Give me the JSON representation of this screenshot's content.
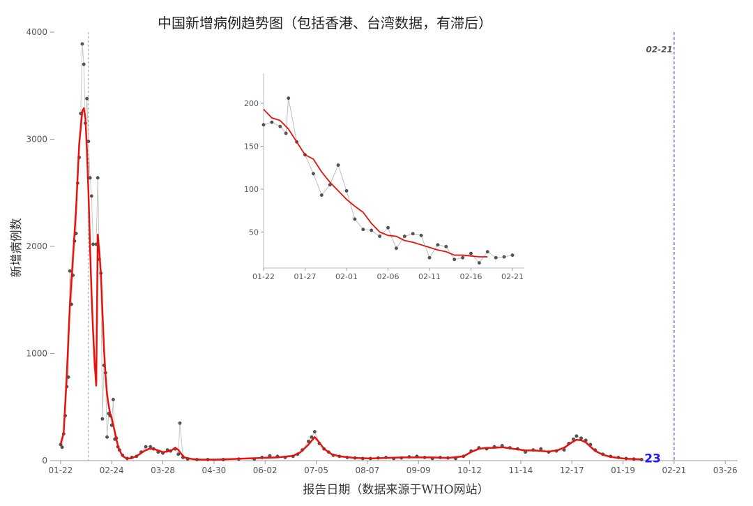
{
  "chart_data": [
    {
      "type": "scatter",
      "title": "中国新增病例趋势图（包括香港、台湾数据，有滞后）",
      "xlabel": "报告日期（数据来源于WHO网站）",
      "ylabel": "新增病例数",
      "x_ticks": [
        "01-22",
        "02-24",
        "03-28",
        "04-30",
        "06-02",
        "07-05",
        "08-07",
        "09-09",
        "10-12",
        "11-14",
        "12-17",
        "01-19",
        "02-21",
        "03-26"
      ],
      "y_ticks": [
        0,
        1000,
        2000,
        3000,
        4000
      ],
      "ylim": [
        0,
        4000
      ],
      "xlim_days": [
        -4,
        437
      ],
      "grid": false,
      "vline_label": "02-21",
      "vline_day": 396,
      "dotted_vline_day": 18,
      "end_label": "23",
      "smooth_color": "#e8120c",
      "raw_color": "#c8c8c8",
      "vline_color": "#3333cc",
      "end_label_color": "#1a1aff",
      "series": [
        {
          "values": [
            [
              0,
              150
            ],
            [
              1,
              125
            ],
            [
              2,
              250
            ],
            [
              3,
              420
            ],
            [
              4,
              690
            ],
            [
              5,
              780
            ],
            [
              6,
              1770
            ],
            [
              7,
              1460
            ],
            [
              8,
              1730
            ],
            [
              9,
              2050
            ],
            [
              10,
              2120
            ],
            [
              11,
              2590
            ],
            [
              12,
              2830
            ],
            [
              13,
              3240
            ],
            [
              14,
              3890
            ],
            [
              15,
              3700
            ],
            [
              16,
              3150
            ],
            [
              17,
              3380
            ],
            [
              18,
              2980
            ],
            [
              19,
              2640
            ],
            [
              20,
              2470
            ],
            [
              21,
              2020
            ],
            [
              23,
              2020
            ],
            [
              24,
              2640
            ],
            [
              25,
              1880
            ],
            [
              26,
              1750
            ],
            [
              27,
              390
            ],
            [
              28,
              890
            ],
            [
              29,
              820
            ],
            [
              30,
              220
            ],
            [
              31,
              440
            ],
            [
              32,
              420
            ],
            [
              33,
              330
            ],
            [
              34,
              570
            ],
            [
              35,
              200
            ],
            [
              36,
              210
            ],
            [
              37,
              130
            ],
            [
              38,
              100
            ],
            [
              40,
              50
            ],
            [
              43,
              20
            ],
            [
              46,
              30
            ],
            [
              49,
              40
            ],
            [
              52,
              80
            ],
            [
              55,
              130
            ],
            [
              58,
              130
            ],
            [
              60,
              110
            ],
            [
              63,
              80
            ],
            [
              66,
              70
            ],
            [
              69,
              100
            ],
            [
              71,
              90
            ],
            [
              74,
              110
            ],
            [
              76,
              60
            ],
            [
              77,
              350
            ],
            [
              79,
              30
            ],
            [
              82,
              15
            ],
            [
              88,
              10
            ],
            [
              95,
              10
            ],
            [
              105,
              10
            ],
            [
              115,
              15
            ],
            [
              125,
              15
            ],
            [
              130,
              30
            ],
            [
              135,
              45
            ],
            [
              140,
              40
            ],
            [
              145,
              30
            ],
            [
              150,
              40
            ],
            [
              153,
              60
            ],
            [
              156,
              100
            ],
            [
              160,
              180
            ],
            [
              162,
              220
            ],
            [
              164,
              270
            ],
            [
              167,
              160
            ],
            [
              170,
              110
            ],
            [
              173,
              80
            ],
            [
              176,
              50
            ],
            [
              180,
              40
            ],
            [
              185,
              30
            ],
            [
              190,
              25
            ],
            [
              195,
              20
            ],
            [
              200,
              20
            ],
            [
              205,
              25
            ],
            [
              210,
              30
            ],
            [
              215,
              20
            ],
            [
              220,
              25
            ],
            [
              225,
              35
            ],
            [
              230,
              40
            ],
            [
              235,
              30
            ],
            [
              240,
              20
            ],
            [
              245,
              30
            ],
            [
              250,
              25
            ],
            [
              255,
              20
            ],
            [
              260,
              40
            ],
            [
              265,
              90
            ],
            [
              270,
              120
            ],
            [
              275,
              110
            ],
            [
              280,
              130
            ],
            [
              285,
              140
            ],
            [
              290,
              120
            ],
            [
              295,
              110
            ],
            [
              300,
              80
            ],
            [
              305,
              100
            ],
            [
              310,
              110
            ],
            [
              315,
              80
            ],
            [
              320,
              90
            ],
            [
              325,
              100
            ],
            [
              328,
              160
            ],
            [
              331,
              200
            ],
            [
              333,
              230
            ],
            [
              336,
              210
            ],
            [
              339,
              190
            ],
            [
              342,
              150
            ],
            [
              345,
              100
            ],
            [
              350,
              60
            ],
            [
              355,
              40
            ],
            [
              360,
              30
            ],
            [
              365,
              20
            ],
            [
              370,
              15
            ],
            [
              375,
              10
            ]
          ]
        },
        {
          "values": [
            [
              0,
              150
            ],
            [
              2,
              260
            ],
            [
              4,
              800
            ],
            [
              6,
              1450
            ],
            [
              8,
              1900
            ],
            [
              10,
              2350
            ],
            [
              12,
              2950
            ],
            [
              14,
              3260
            ],
            [
              15,
              3290
            ],
            [
              16,
              3200
            ],
            [
              17,
              2900
            ],
            [
              18,
              2500
            ],
            [
              19,
              2000
            ],
            [
              20,
              1550
            ],
            [
              21,
              1200
            ],
            [
              22,
              900
            ],
            [
              23,
              700
            ],
            [
              24,
              2110
            ],
            [
              25,
              1950
            ],
            [
              26,
              1750
            ],
            [
              27,
              1400
            ],
            [
              28,
              1050
            ],
            [
              29,
              800
            ],
            [
              30,
              620
            ],
            [
              31,
              520
            ],
            [
              32,
              440
            ],
            [
              33,
              400
            ],
            [
              34,
              330
            ],
            [
              35,
              270
            ],
            [
              36,
              200
            ],
            [
              37,
              140
            ],
            [
              38,
              100
            ],
            [
              39,
              70
            ],
            [
              40,
              45
            ],
            [
              42,
              25
            ],
            [
              45,
              20
            ],
            [
              48,
              35
            ],
            [
              51,
              60
            ],
            [
              54,
              90
            ],
            [
              57,
              110
            ],
            [
              60,
              110
            ],
            [
              63,
              95
            ],
            [
              66,
              80
            ],
            [
              69,
              85
            ],
            [
              72,
              100
            ],
            [
              74,
              120
            ],
            [
              76,
              100
            ],
            [
              78,
              60
            ],
            [
              80,
              30
            ],
            [
              85,
              15
            ],
            [
              90,
              10
            ],
            [
              100,
              10
            ],
            [
              110,
              15
            ],
            [
              120,
              20
            ],
            [
              130,
              25
            ],
            [
              140,
              30
            ],
            [
              150,
              45
            ],
            [
              155,
              80
            ],
            [
              160,
              150
            ],
            [
              164,
              220
            ],
            [
              167,
              170
            ],
            [
              170,
              110
            ],
            [
              175,
              60
            ],
            [
              180,
              40
            ],
            [
              190,
              25
            ],
            [
              200,
              20
            ],
            [
              210,
              25
            ],
            [
              220,
              30
            ],
            [
              230,
              30
            ],
            [
              240,
              30
            ],
            [
              250,
              25
            ],
            [
              260,
              40
            ],
            [
              265,
              80
            ],
            [
              270,
              110
            ],
            [
              275,
              120
            ],
            [
              280,
              120
            ],
            [
              285,
              125
            ],
            [
              290,
              115
            ],
            [
              295,
              105
            ],
            [
              300,
              95
            ],
            [
              305,
              95
            ],
            [
              310,
              90
            ],
            [
              315,
              85
            ],
            [
              320,
              95
            ],
            [
              325,
              120
            ],
            [
              330,
              170
            ],
            [
              333,
              195
            ],
            [
              336,
              190
            ],
            [
              339,
              170
            ],
            [
              342,
              130
            ],
            [
              345,
              90
            ],
            [
              350,
              55
            ],
            [
              355,
              35
            ],
            [
              360,
              25
            ],
            [
              365,
              18
            ],
            [
              370,
              15
            ],
            [
              375,
              12
            ]
          ]
        }
      ]
    },
    {
      "type": "scatter",
      "title": "",
      "x_ticks": [
        "01-22",
        "01-27",
        "02-01",
        "02-06",
        "02-11",
        "02-16",
        "02-21"
      ],
      "y_ticks": [
        50,
        100,
        150,
        200
      ],
      "ylim": [
        8,
        235
      ],
      "xlim": [
        0,
        30
      ],
      "series": [
        {
          "values": [
            [
              0,
              175
            ],
            [
              1,
              178
            ],
            [
              2,
              173
            ],
            [
              2.7,
              165
            ],
            [
              3,
              206
            ],
            [
              4,
              155
            ],
            [
              5,
              140
            ],
            [
              6,
              118
            ],
            [
              7,
              93
            ],
            [
              8,
              105
            ],
            [
              9,
              128
            ],
            [
              10,
              98
            ],
            [
              11,
              65
            ],
            [
              12,
              53
            ],
            [
              13,
              52
            ],
            [
              14,
              45
            ],
            [
              15,
              55
            ],
            [
              16,
              31
            ],
            [
              17,
              45
            ],
            [
              18,
              48
            ],
            [
              19,
              46
            ],
            [
              20,
              20
            ],
            [
              21,
              35
            ],
            [
              22,
              33
            ],
            [
              23,
              18
            ],
            [
              24,
              20
            ],
            [
              25,
              25
            ],
            [
              26,
              14
            ],
            [
              27,
              27
            ],
            [
              28,
              20
            ],
            [
              29,
              21
            ],
            [
              30,
              23
            ]
          ]
        },
        {
          "values": [
            [
              0,
              193
            ],
            [
              1,
              183
            ],
            [
              2,
              180
            ],
            [
              3,
              170
            ],
            [
              4,
              155
            ],
            [
              5,
              140
            ],
            [
              6,
              135
            ],
            [
              7,
              120
            ],
            [
              8,
              108
            ],
            [
              9,
              98
            ],
            [
              10,
              88
            ],
            [
              11,
              80
            ],
            [
              12,
              73
            ],
            [
              13,
              60
            ],
            [
              14,
              50
            ],
            [
              15,
              46
            ],
            [
              16,
              45
            ],
            [
              17,
              40
            ],
            [
              18,
              38
            ],
            [
              19,
              35
            ],
            [
              20,
              32
            ],
            [
              21,
              29
            ],
            [
              22,
              27
            ],
            [
              23,
              23
            ],
            [
              24,
              23
            ],
            [
              25,
              22
            ],
            [
              26,
              21
            ],
            [
              27,
              21
            ]
          ]
        }
      ]
    }
  ]
}
